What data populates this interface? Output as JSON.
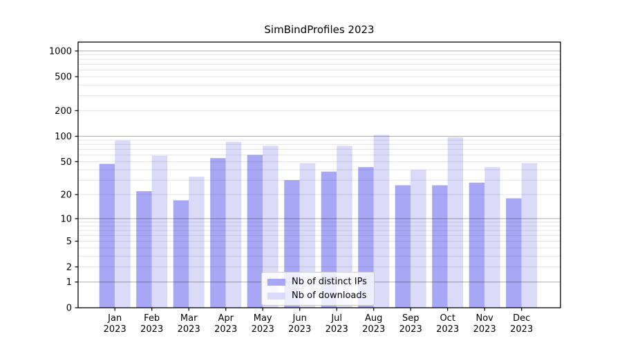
{
  "figure": {
    "background": "#ffffff"
  },
  "chart_data": {
    "type": "bar",
    "title": "SimBindProfiles 2023",
    "y_scale": "log1p",
    "ylim": [
      0,
      1270
    ],
    "y_ticks": [
      0,
      1,
      2,
      5,
      10,
      20,
      50,
      100,
      200,
      500,
      1000
    ],
    "y_major_gridlines": [
      1,
      10,
      100,
      1000
    ],
    "grid": true,
    "categories_line1": [
      "Jan",
      "Feb",
      "Mar",
      "Apr",
      "May",
      "Jun",
      "Jul",
      "Aug",
      "Sep",
      "Oct",
      "Nov",
      "Dec"
    ],
    "categories_line2": "2023",
    "series": [
      {
        "name": "Nb of distinct IPs",
        "color": "#a7a7f5",
        "values": [
          47,
          22,
          17,
          55,
          60,
          30,
          38,
          43,
          26,
          26,
          28,
          18
        ]
      },
      {
        "name": "Nb of downloads",
        "color": "#dbdbf9",
        "values": [
          89,
          59,
          33,
          86,
          77,
          48,
          77,
          104,
          40,
          97,
          43,
          48
        ]
      }
    ],
    "legend": {
      "position": "lower center",
      "entries": [
        "Nb of distinct IPs",
        "Nb of downloads"
      ]
    },
    "style": {
      "spine_color": "#000000",
      "grid_major_rgba": "rgba(0,0,0,0.32)",
      "grid_minor_rgba": "rgba(0,0,0,0.11)",
      "tick_label_color": "#000000"
    }
  }
}
